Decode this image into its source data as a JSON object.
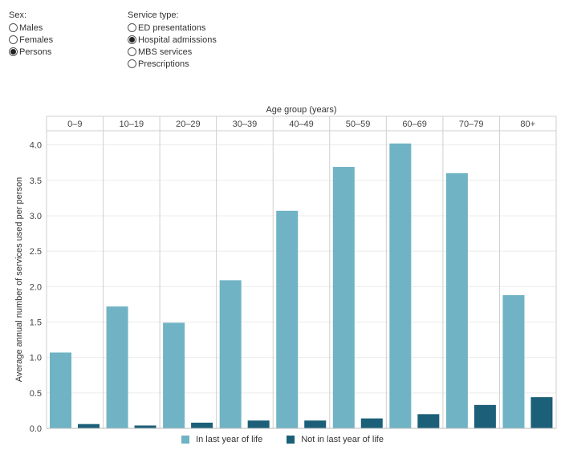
{
  "controls": {
    "sex": {
      "title": "Sex:",
      "options": [
        "Males",
        "Females",
        "Persons"
      ],
      "selected": "Persons"
    },
    "service_type": {
      "title": "Service type:",
      "options": [
        "ED presentations",
        "Hospital admissions",
        "MBS services",
        "Prescriptions"
      ],
      "selected": "Hospital admissions"
    }
  },
  "colors": {
    "in_last_year": "#6fb3c4",
    "not_in_last_year": "#1b5f78"
  },
  "chart_data": {
    "type": "bar",
    "title": "",
    "top_axis_label": "Age group (years)",
    "ylabel": "Average annual number of services used per person",
    "xlabel": "",
    "categories": [
      "0–9",
      "10–19",
      "20–29",
      "30–39",
      "40–49",
      "50–59",
      "60–69",
      "70–79",
      "80+"
    ],
    "series": [
      {
        "name": "In last year of life",
        "values": [
          1.07,
          1.72,
          1.49,
          2.09,
          3.07,
          3.69,
          4.02,
          3.6,
          1.88
        ]
      },
      {
        "name": "Not in last year of life",
        "values": [
          0.06,
          0.04,
          0.08,
          0.11,
          0.11,
          0.14,
          0.2,
          0.33,
          0.44
        ]
      }
    ],
    "ylim": [
      0,
      4.2
    ],
    "yticks": [
      0.0,
      0.5,
      1.0,
      1.5,
      2.0,
      2.5,
      3.0,
      3.5,
      4.0
    ],
    "ytick_labels": [
      "0.0",
      "0.5",
      "1.0",
      "1.5",
      "2.0",
      "2.5",
      "3.0",
      "3.5",
      "4.0"
    ],
    "grid": true,
    "legend_position": "bottom-center"
  }
}
